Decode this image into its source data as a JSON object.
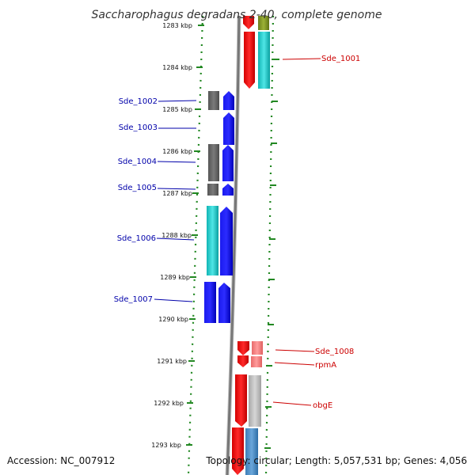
{
  "title": "Saccharophagus degradans 2-40, complete genome",
  "footer": {
    "accession": "Accession: NC_007912",
    "summary": "Topology: circular; Length: 5,057,531 bp; Genes: 4,056"
  },
  "colors": {
    "left_label": "#0000aa",
    "right_label": "#cc0000",
    "tick_dash": "#228822",
    "backbone": "#777777"
  },
  "ticks": [
    "1283 kbp",
    "1284 kbp",
    "1285 kbp",
    "1286 kbp",
    "1287 kbp",
    "1288 kbp",
    "1289 kbp",
    "1290 kbp",
    "1291 kbp",
    "1292 kbp",
    "1293 kbp"
  ],
  "gene_labels": {
    "left": [
      "Sde_1002",
      "Sde_1003",
      "Sde_1004",
      "Sde_1005",
      "Sde_1006",
      "Sde_1007"
    ],
    "right": [
      "Sde_1001",
      "Sde_1008",
      "rpmA",
      "obgE"
    ]
  }
}
